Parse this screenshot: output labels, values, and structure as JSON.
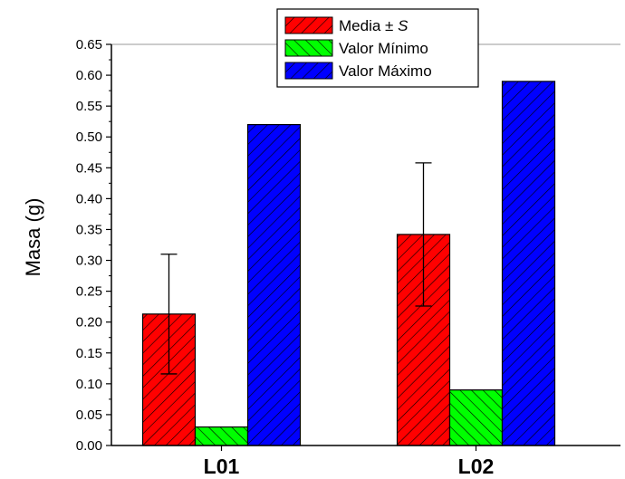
{
  "chart_data": {
    "type": "bar",
    "categories": [
      "L01",
      "L02"
    ],
    "ylabel": "Masa (g)",
    "xlabel": "",
    "title": "",
    "ylim": [
      0,
      0.65
    ],
    "yticks": [
      "0.00",
      "0.05",
      "0.10",
      "0.15",
      "0.20",
      "0.25",
      "0.30",
      "0.35",
      "0.40",
      "0.45",
      "0.50",
      "0.55",
      "0.60",
      "0.65"
    ],
    "legend_position": "top-center",
    "series": [
      {
        "name": "Media ± S",
        "name_prefix": "Media ± ",
        "name_italic": "S",
        "values": [
          0.213,
          0.342
        ],
        "error": [
          0.097,
          0.116
        ],
        "color": "#ff0000",
        "hatch": "diagonal-down"
      },
      {
        "name": "Valor Mínimo",
        "values": [
          0.03,
          0.09
        ],
        "color": "#00ff00",
        "hatch": "diagonal-up"
      },
      {
        "name": "Valor Máximo",
        "values": [
          0.52,
          0.59
        ],
        "color": "#0000ff",
        "hatch": "diagonal-down"
      }
    ]
  }
}
